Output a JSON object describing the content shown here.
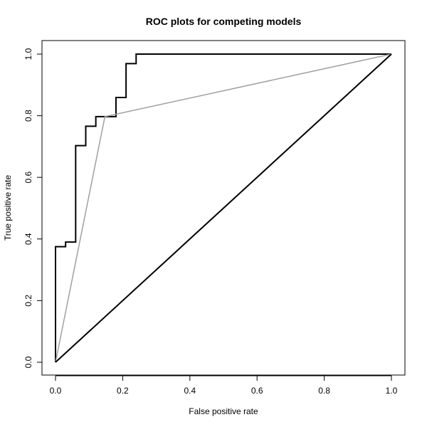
{
  "chart_data": {
    "type": "line",
    "title": "ROC plots for competing models",
    "xlabel": "False positive rate",
    "ylabel": "True positive rate",
    "xlim": [
      0,
      1
    ],
    "ylim": [
      0,
      1
    ],
    "x_ticks": [
      "0.0",
      "0.2",
      "0.4",
      "0.6",
      "0.8",
      "1.0"
    ],
    "y_ticks": [
      "0.0",
      "0.2",
      "0.4",
      "0.6",
      "0.8",
      "1.0"
    ],
    "grid": false,
    "legend": "none",
    "series": [
      {
        "color": "#000000",
        "step": true,
        "x": [
          0.0,
          0.0,
          0.03,
          0.03,
          0.06,
          0.06,
          0.09,
          0.09,
          0.12,
          0.12,
          0.18,
          0.18,
          0.21,
          0.21,
          0.24,
          0.24,
          1.0
        ],
        "y": [
          0.0,
          0.375,
          0.375,
          0.39,
          0.39,
          0.703,
          0.703,
          0.766,
          0.766,
          0.797,
          0.797,
          0.859,
          0.859,
          0.969,
          0.969,
          1.0,
          1.0
        ]
      },
      {
        "color": "#a0a0a0",
        "step": false,
        "x": [
          0.0,
          0.147,
          1.0
        ],
        "y": [
          0.0,
          0.797,
          1.0
        ]
      },
      {
        "color": "#000000",
        "step": false,
        "x": [
          0.0,
          1.0
        ],
        "y": [
          0.0,
          1.0
        ]
      }
    ]
  }
}
